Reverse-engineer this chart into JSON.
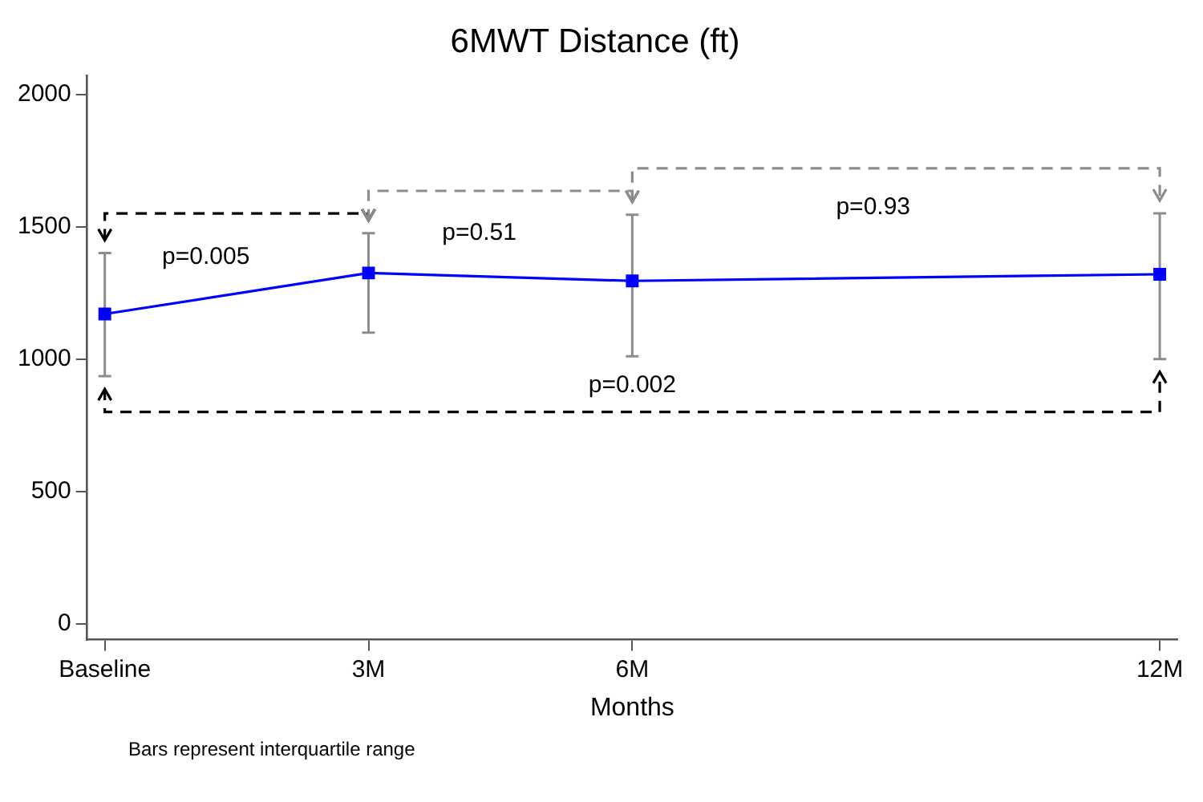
{
  "chart_data": {
    "type": "line",
    "title": "6MWT Distance (ft)",
    "xlabel": "Months",
    "x": [
      0,
      3,
      6,
      12
    ],
    "series": [
      {
        "color": "#0000ff",
        "values": [
          1170,
          1325,
          1295,
          1320
        ],
        "errors": [
          [
            935,
            1400
          ],
          [
            1100,
            1475
          ],
          [
            1010,
            1545
          ],
          [
            1000,
            1550
          ]
        ]
      }
    ],
    "xlim": [
      -0.2,
      12.2
    ],
    "xticks": [
      {
        "value": 0,
        "label": "Baseline"
      },
      {
        "value": 3,
        "label": "3M"
      },
      {
        "value": 6,
        "label": "6M"
      },
      {
        "value": 12,
        "label": "12M"
      }
    ],
    "ylim": [
      -60,
      2070
    ],
    "yticks": [
      0,
      500,
      1000,
      1500,
      2000
    ],
    "grid": false,
    "legend": false,
    "marker": "square",
    "line_style": "solid",
    "annotations": [
      "p=0.005",
      "p=0.51",
      "p=0.93",
      "p=0.002",
      "Bars represent interquartile range"
    ]
  }
}
